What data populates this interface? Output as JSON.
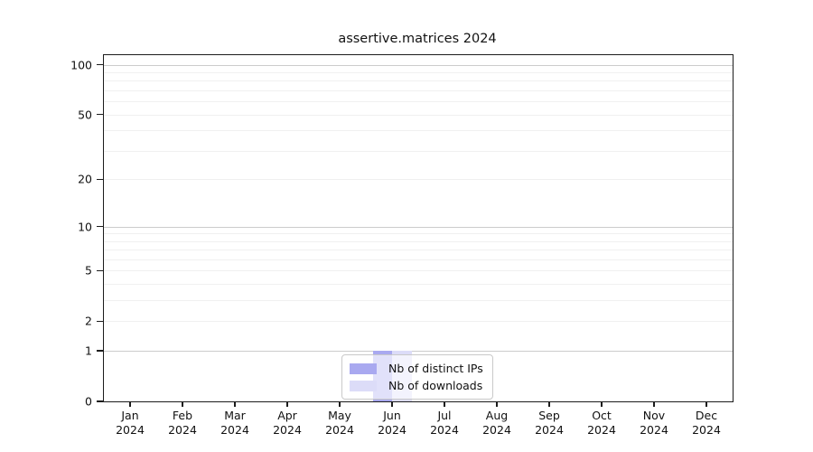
{
  "title": "assertive.matrices 2024",
  "chart_data": {
    "type": "bar",
    "title": "assertive.matrices 2024",
    "categories": [
      "Jan",
      "Feb",
      "Mar",
      "Apr",
      "May",
      "Jun",
      "Jul",
      "Aug",
      "Sep",
      "Oct",
      "Nov",
      "Dec"
    ],
    "year": "2024",
    "series": [
      {
        "name": "Nb of distinct IPs",
        "color": "#a9a9f0",
        "values": [
          0,
          0,
          0,
          0,
          0,
          1,
          0,
          0,
          0,
          0,
          0,
          0
        ]
      },
      {
        "name": "Nb of downloads",
        "color": "#dcdcf8",
        "values": [
          0,
          0,
          0,
          0,
          0,
          1,
          0,
          0,
          0,
          0,
          0,
          0
        ]
      }
    ],
    "xlabel": "",
    "ylabel": "",
    "ylim": [
      0,
      114
    ],
    "y_scale": "log10(1+x)",
    "y_tick_values": [
      0,
      1,
      2,
      5,
      10,
      20,
      50,
      100
    ],
    "y_major_grid_values": [
      1,
      10,
      100
    ],
    "y_minor_grid_values": [
      2,
      3,
      4,
      5,
      6,
      7,
      8,
      9,
      20,
      30,
      40,
      50,
      60,
      70,
      80,
      90
    ],
    "grid": "horizontal",
    "legend_position": "bottom-center"
  },
  "colors": {
    "frame": "#1c1c1c",
    "major_grid": "#cccccc",
    "minor_grid": "#f0f0f0",
    "distinct_ips_bar": "#a9a9f0",
    "downloads_bar": "#dcdcf8"
  }
}
